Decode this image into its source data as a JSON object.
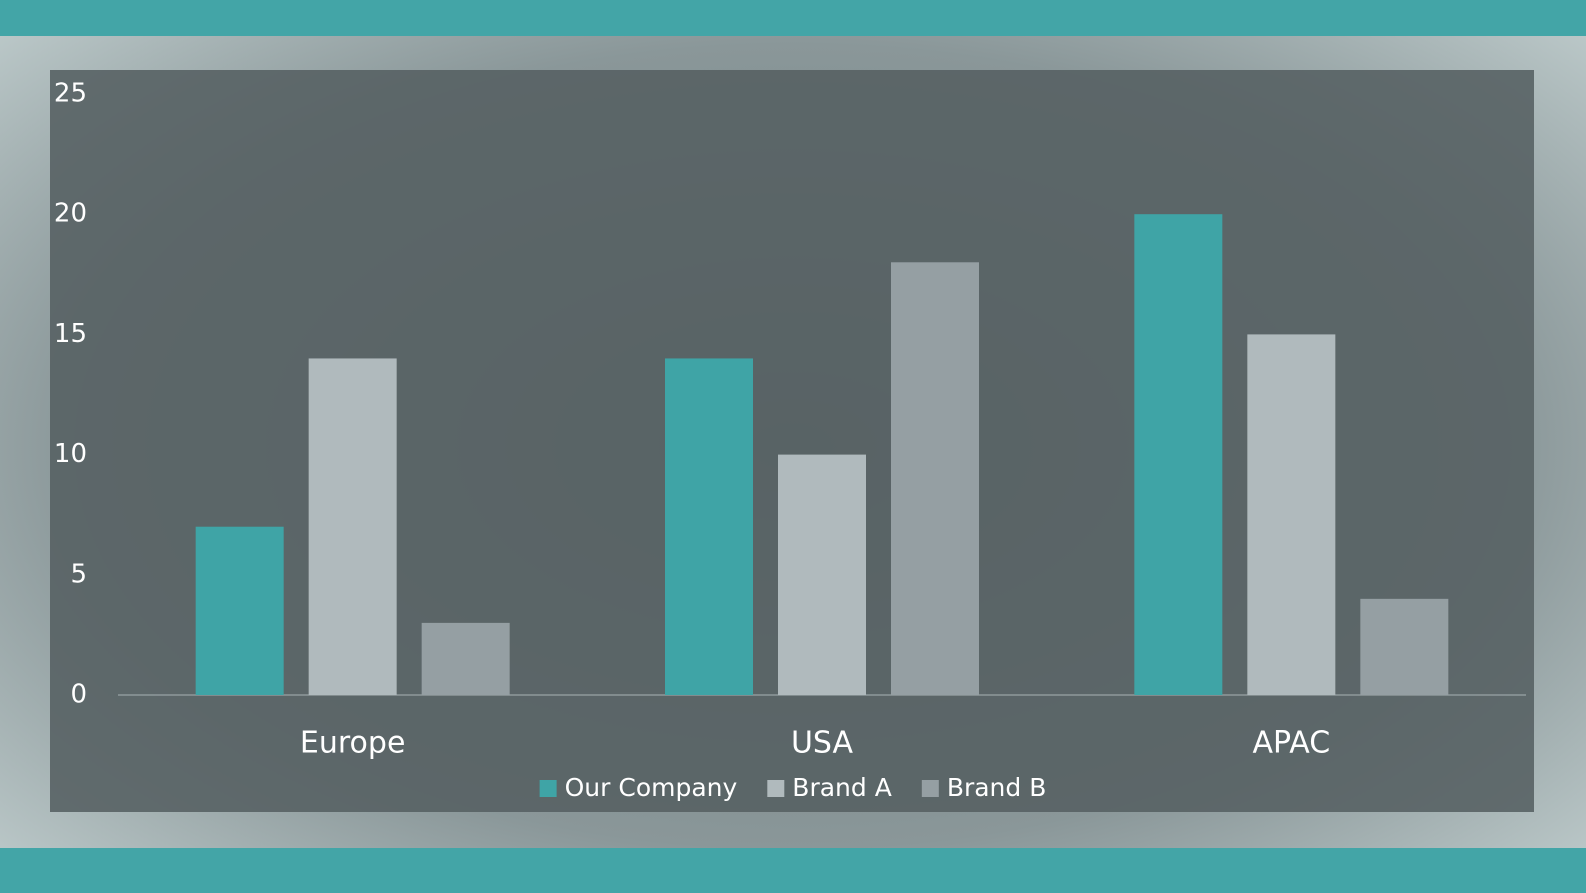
{
  "chart_data": {
    "type": "bar",
    "categories": [
      "Europe",
      "USA",
      "APAC"
    ],
    "series": [
      {
        "name": "Our Company",
        "color": "#3fa4a6",
        "values": [
          7,
          14,
          20
        ]
      },
      {
        "name": "Brand A",
        "color": "#b0babd",
        "values": [
          14,
          10,
          15
        ]
      },
      {
        "name": "Brand B",
        "color": "#959fa3",
        "values": [
          3,
          18,
          4
        ]
      }
    ],
    "ylim": [
      0,
      25
    ],
    "yticks": [
      0,
      5,
      10,
      15,
      20,
      25
    ],
    "grid": false,
    "legend": "bottom"
  }
}
